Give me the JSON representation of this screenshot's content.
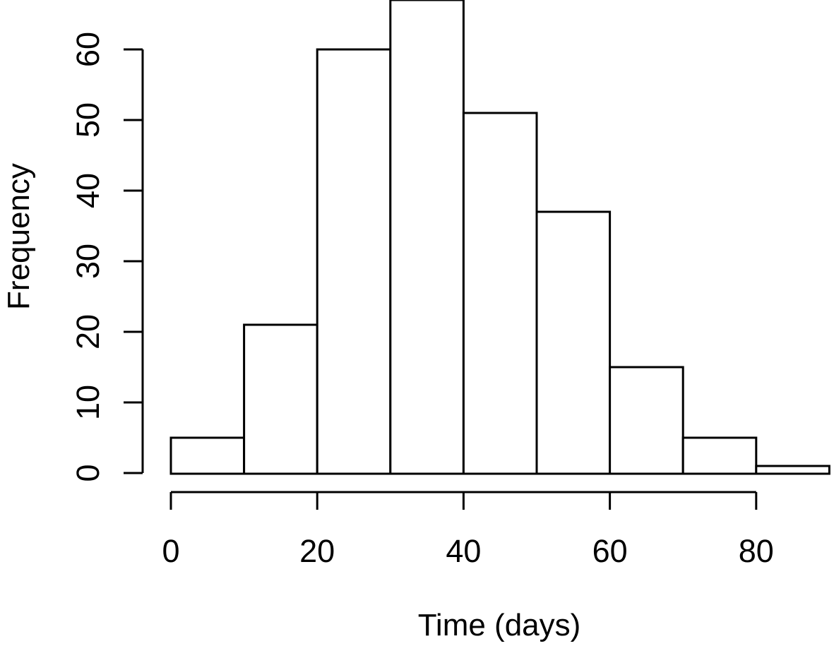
{
  "figure": {
    "background": "#ffffff"
  },
  "chart_data": {
    "type": "bar",
    "subtype": "histogram",
    "title": "",
    "xlabel": "Time (days)",
    "ylabel": "Frequency",
    "bin_edges": [
      0,
      10,
      20,
      30,
      40,
      50,
      60,
      70,
      80,
      90
    ],
    "frequencies": [
      5,
      21,
      60,
      67,
      51,
      37,
      15,
      5,
      1
    ],
    "x_ticks": [
      0,
      20,
      40,
      60,
      80
    ],
    "y_ticks": [
      0,
      10,
      20,
      30,
      40,
      50,
      60
    ],
    "xlim": [
      0,
      90
    ],
    "ylim": [
      0,
      67
    ],
    "grid": false,
    "legend_position": "none",
    "bar_fill": "#ffffff",
    "bar_border": "#000000",
    "axis_color": "#000000",
    "text_color": "#000000"
  }
}
